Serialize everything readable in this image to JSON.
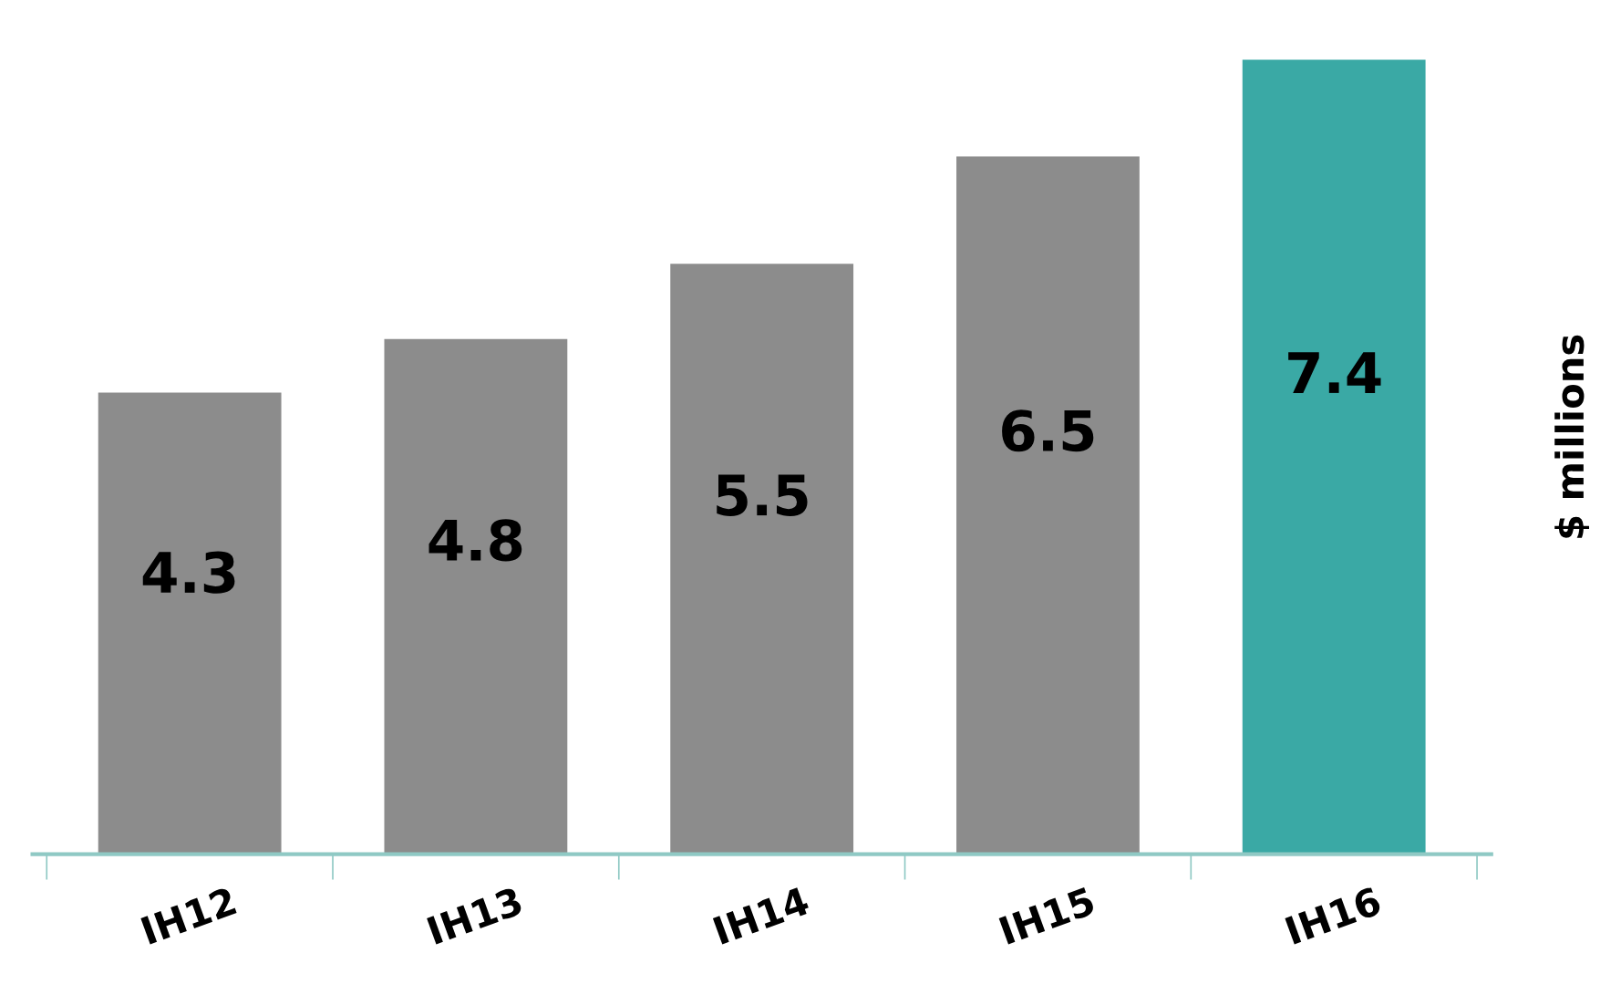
{
  "chart_data": {
    "type": "bar",
    "ylabel": "$ millions",
    "categories": [
      "IH12",
      "IH13",
      "IH14",
      "IH15",
      "IH16"
    ],
    "values": [
      4.3,
      4.8,
      5.5,
      6.5,
      7.4
    ],
    "colors": [
      "#8c8c8c",
      "#8c8c8c",
      "#8c8c8c",
      "#8c8c8c",
      "#3aa9a5"
    ],
    "data_labels": true,
    "grid": false,
    "legend": false
  }
}
